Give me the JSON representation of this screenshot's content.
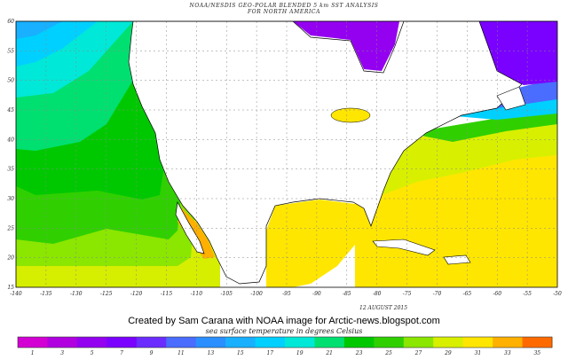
{
  "title": {
    "line1": "NOAA/NESDIS GEO-POLAR BLENDED 5 km SST ANALYSIS",
    "line2": "FOR NORTH AMERICA"
  },
  "map": {
    "lon_ticks": [
      -140,
      -135,
      -130,
      -125,
      -120,
      -115,
      -110,
      -105,
      -100,
      -95,
      -90,
      -85,
      -80,
      -75,
      -70,
      -65,
      -60,
      -55,
      -50
    ],
    "lat_ticks": [
      15,
      20,
      25,
      30,
      35,
      40,
      45,
      50,
      55,
      60
    ],
    "lon_range": [
      -140,
      -50
    ],
    "lat_range": [
      15,
      60
    ],
    "date": "12 AUGUST 2015"
  },
  "credit": "Created by Sam Carana with NOAA image for Arctic-news.blogspot.com",
  "legend": {
    "caption": "sea surface temperature in degrees Celsius",
    "labels": [
      "1",
      "3",
      "5",
      "7",
      "9",
      "11",
      "13",
      "15",
      "17",
      "19",
      "21",
      "23",
      "25",
      "27",
      "29",
      "31",
      "33",
      "35"
    ],
    "colors": [
      "#d300d3",
      "#b000e0",
      "#9400f0",
      "#7a00ff",
      "#6a2cff",
      "#4a6cff",
      "#2b8fff",
      "#18b0ff",
      "#00d0ff",
      "#00e8d8",
      "#00e070",
      "#00c800",
      "#30d000",
      "#8be600",
      "#d8f000",
      "#ffe600",
      "#ffb000",
      "#ff6a00"
    ]
  },
  "colors": {
    "land": "#ffffff",
    "coast": "#000000",
    "grid": "#888888"
  }
}
